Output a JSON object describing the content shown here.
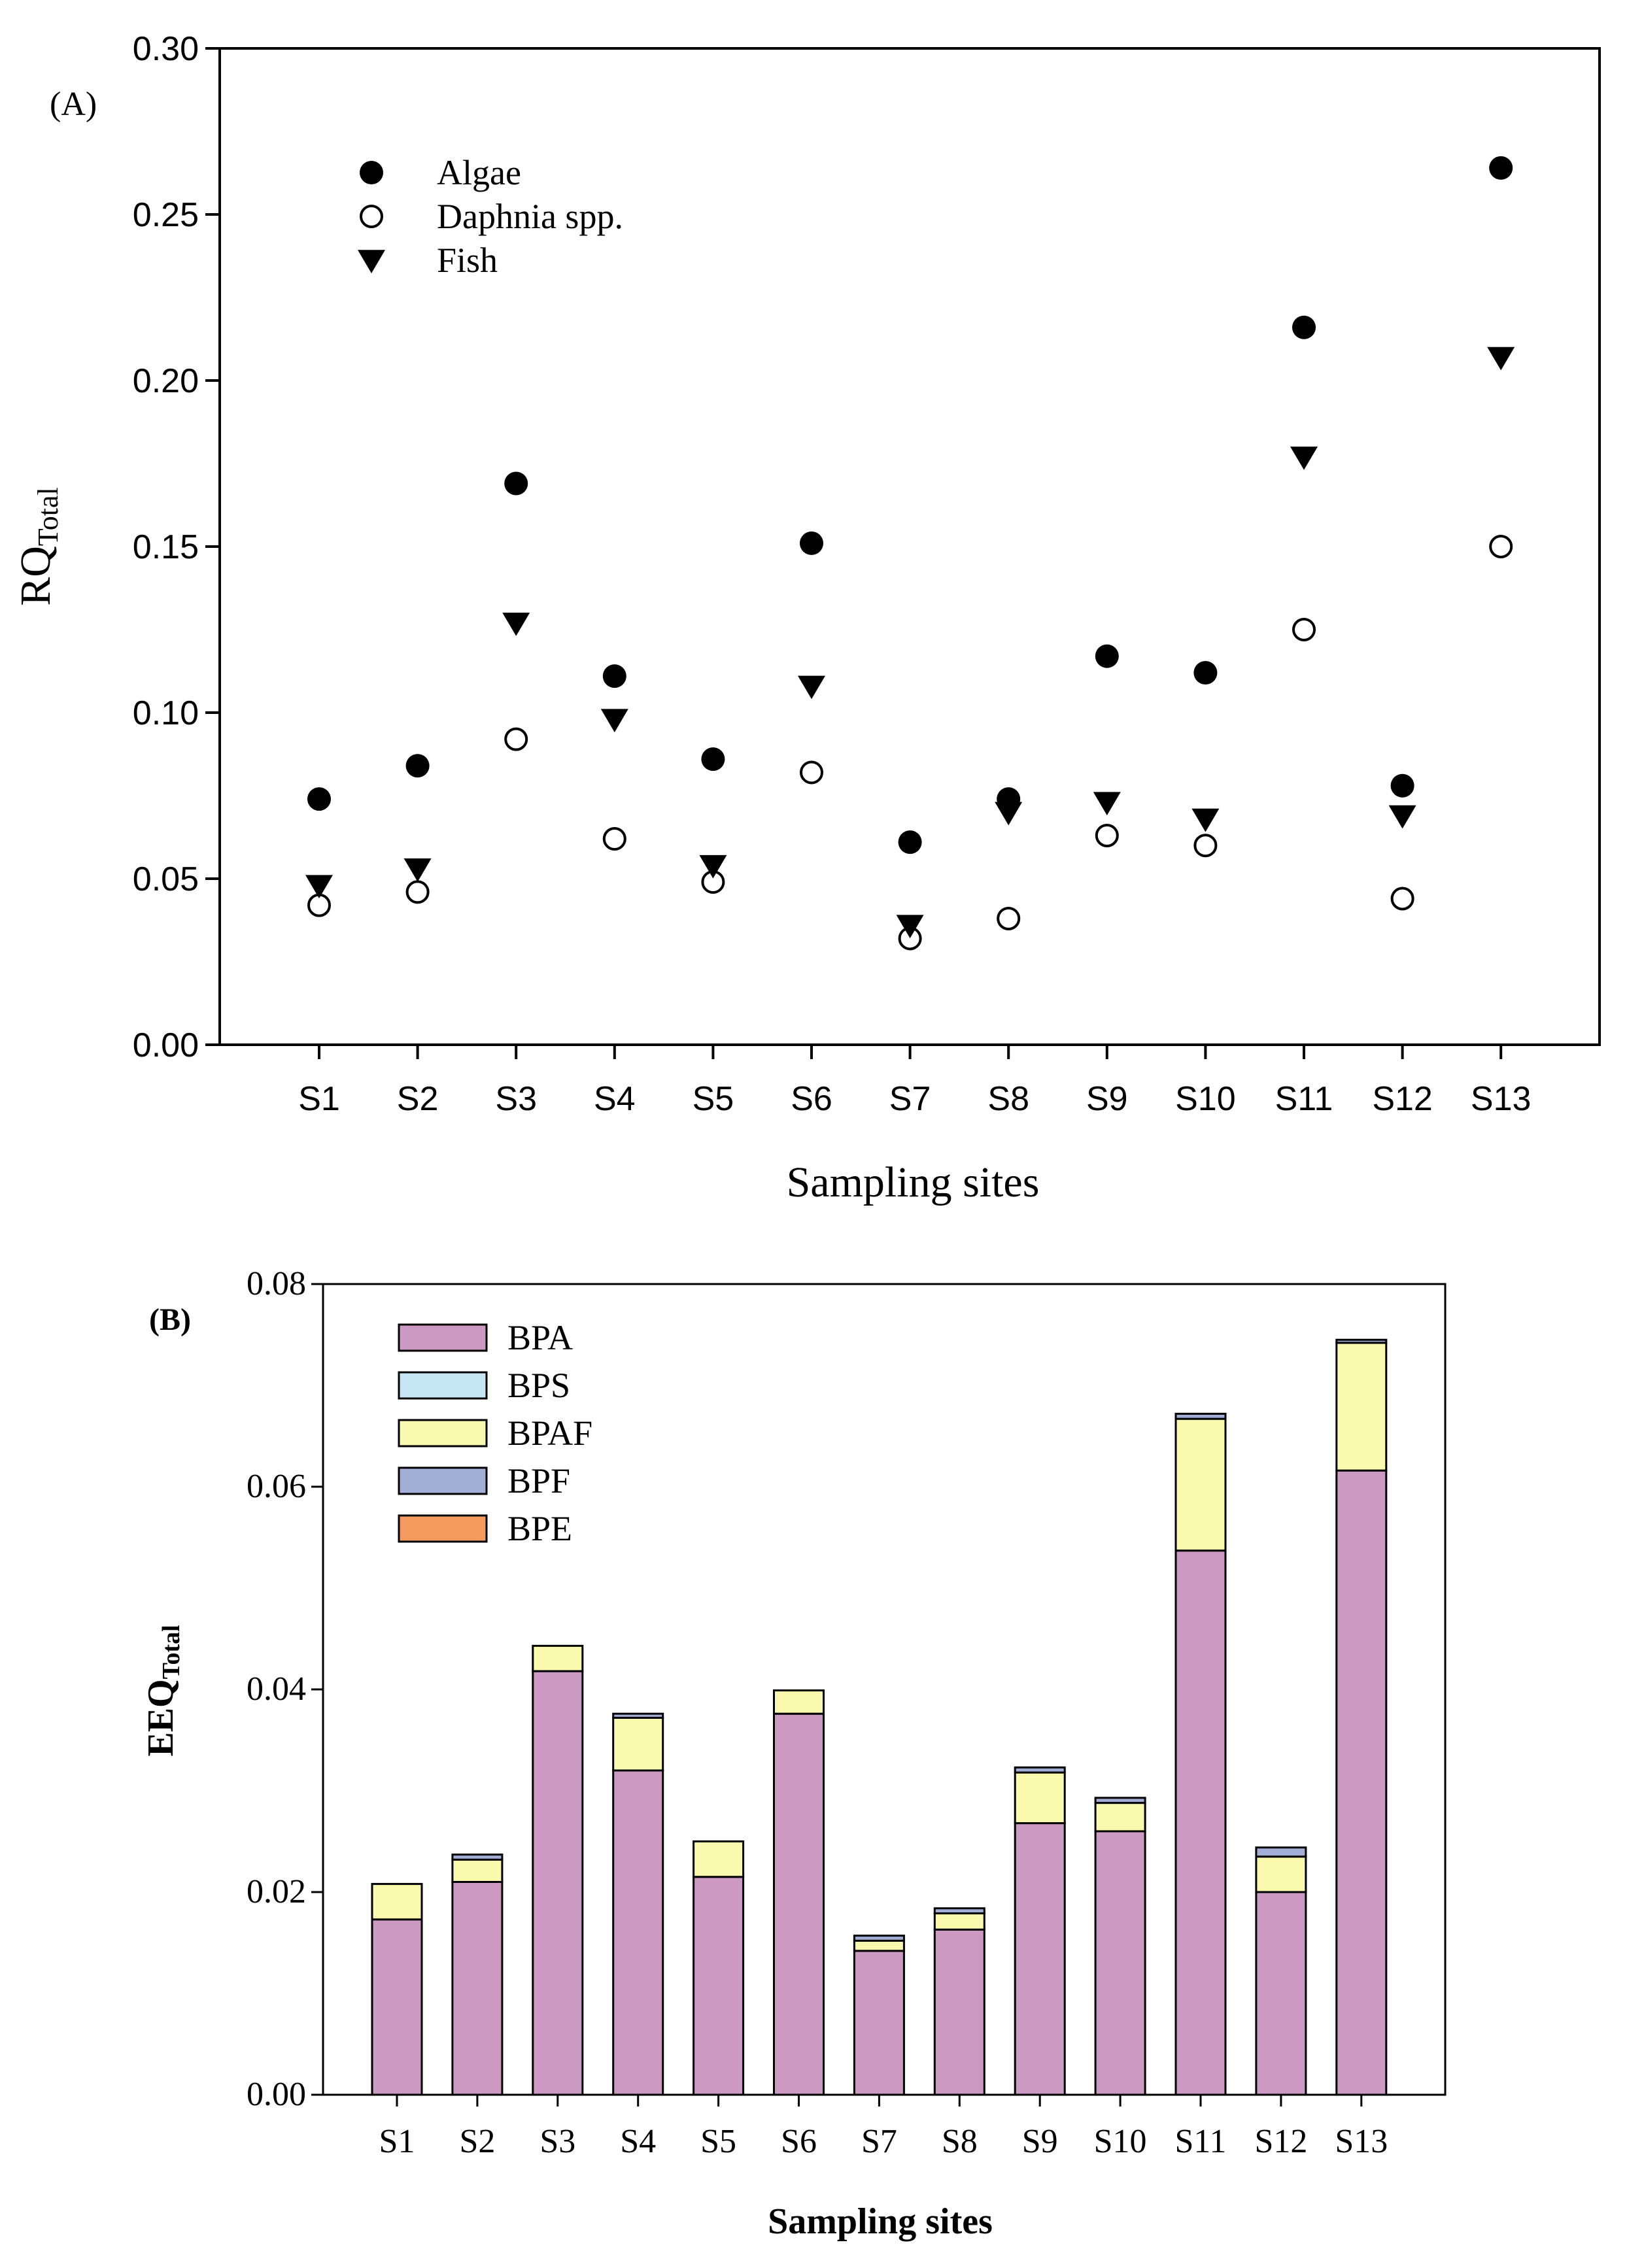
{
  "chart_data": [
    {
      "type": "scatter",
      "panel_label": "(A)",
      "categories": [
        "S1",
        "S2",
        "S3",
        "S4",
        "S5",
        "S6",
        "S7",
        "S8",
        "S9",
        "S10",
        "S11",
        "S12",
        "S13"
      ],
      "series": [
        {
          "name": "Algae",
          "marker": "filled-circle",
          "values": [
            0.074,
            0.084,
            0.169,
            0.111,
            0.086,
            0.151,
            0.061,
            0.074,
            0.117,
            0.112,
            0.216,
            0.078,
            0.264
          ]
        },
        {
          "name": "Daphnia spp.",
          "marker": "open-circle",
          "values": [
            0.042,
            0.046,
            0.092,
            0.062,
            0.049,
            0.082,
            0.032,
            0.038,
            0.063,
            0.06,
            0.125,
            0.044,
            0.15
          ]
        },
        {
          "name": "Fish",
          "marker": "down-triangle",
          "values": [
            0.048,
            0.053,
            0.127,
            0.098,
            0.054,
            0.108,
            0.036,
            0.07,
            0.073,
            0.068,
            0.177,
            0.069,
            0.207
          ]
        }
      ],
      "xlabel": "Sampling sites",
      "ylabel_main": "RQ",
      "ylabel_sub": "Total",
      "ylim": [
        0,
        0.3
      ],
      "yticks": [
        "0.00",
        "0.05",
        "0.10",
        "0.15",
        "0.20",
        "0.25",
        "0.30"
      ],
      "legend": "top-left"
    },
    {
      "type": "bar",
      "stacked": true,
      "panel_label": "(B)",
      "categories": [
        "S1",
        "S2",
        "S3",
        "S4",
        "S5",
        "S6",
        "S7",
        "S8",
        "S9",
        "S10",
        "S11",
        "S12",
        "S13"
      ],
      "series": [
        {
          "name": "BPA",
          "color": "#cc99c2",
          "values": [
            0.0173,
            0.021,
            0.0418,
            0.032,
            0.0215,
            0.0376,
            0.0142,
            0.0163,
            0.0268,
            0.026,
            0.0537,
            0.02,
            0.0616
          ]
        },
        {
          "name": "BPS",
          "color": "#c5e6f2",
          "values": [
            0.0,
            0.0,
            0.0,
            0.0,
            0.0,
            0.0,
            0.0,
            0.0,
            0.0,
            0.0,
            0.0,
            0.0,
            0.0
          ]
        },
        {
          "name": "BPAF",
          "color": "#fafaaf",
          "values": [
            0.0035,
            0.0022,
            0.0025,
            0.0052,
            0.0035,
            0.0023,
            0.001,
            0.0016,
            0.005,
            0.0028,
            0.013,
            0.0035,
            0.0126
          ]
        },
        {
          "name": "BPF",
          "color": "#a3aed6",
          "values": [
            0.0,
            0.0005,
            0.0,
            0.0004,
            0.0,
            0.0,
            0.0005,
            0.0005,
            0.0005,
            0.0005,
            0.0005,
            0.0009,
            0.0003
          ]
        },
        {
          "name": "BPE",
          "color": "#f59a5e",
          "values": [
            0.0,
            0.0,
            0.0,
            0.0,
            0.0,
            0.0,
            0.0,
            0.0,
            0.0,
            0.0,
            0.0,
            0.0,
            0.0
          ]
        }
      ],
      "xlabel": "Sampling sites",
      "ylabel_main": "EEQ",
      "ylabel_sub": "Total",
      "ylim": [
        0,
        0.08
      ],
      "yticks": [
        "0.00",
        "0.02",
        "0.04",
        "0.06",
        "0.08"
      ],
      "legend": "top-left"
    }
  ]
}
